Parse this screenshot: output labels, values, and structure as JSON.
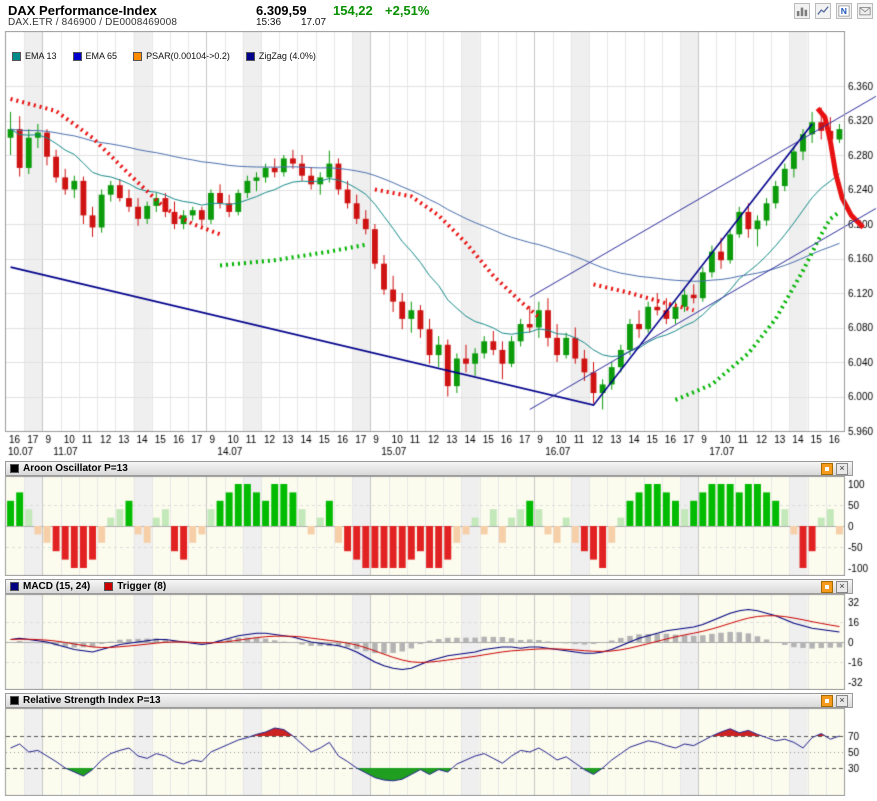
{
  "header": {
    "title": "DAX Performance-Index",
    "price": "6.309,59",
    "change": "154,22",
    "change_pct": "+2,51%",
    "time": "15:36",
    "date": "17.07",
    "identifiers": "DAX.ETR  /  846900  /  DE0008469008",
    "accent_green": "#089000"
  },
  "legend": {
    "items": [
      {
        "label": "EMA 13",
        "color": "#008b8b"
      },
      {
        "label": "EMA 65",
        "color": "#0000cd"
      },
      {
        "label": "PSAR(0.00104->0.2)",
        "color": "#ff8c00"
      },
      {
        "label": "ZigZag (4.0%)",
        "color": "#00008b"
      }
    ]
  },
  "panels": {
    "aroon": {
      "title": "Aroon Oscillator P=13",
      "swatch": "#000000",
      "axis": [
        100,
        50,
        0,
        -50,
        -100
      ]
    },
    "macd": {
      "title": "MACD (15, 24)",
      "swatch": "#000080",
      "trigger_title": "Trigger (8)",
      "trigger_swatch": "#cc0000",
      "axis": [
        32,
        16,
        0,
        -16,
        -32
      ]
    },
    "rsi": {
      "title": "Relative Strength Index P=13",
      "swatch": "#000000",
      "axis": [
        70,
        50,
        30
      ]
    }
  },
  "chart_data": {
    "type": "candlestick",
    "title": "DAX Performance-Index",
    "y_axis": {
      "min": 5960,
      "max": 6360,
      "step": 40
    },
    "bars_per_hour": 2,
    "days": [
      {
        "label": "10.07",
        "hours": [
          16,
          17
        ]
      },
      {
        "label": "11.07",
        "hours": [
          9,
          10,
          11,
          12,
          13,
          14,
          15,
          16,
          17
        ]
      },
      {
        "label": "14.07",
        "hours": [
          9,
          10,
          11,
          12,
          13,
          14,
          15,
          16,
          17
        ]
      },
      {
        "label": "15.07",
        "hours": [
          9,
          10,
          11,
          12,
          13,
          14,
          15,
          16,
          17
        ]
      },
      {
        "label": "16.07",
        "hours": [
          9,
          10,
          11,
          12,
          13,
          14,
          15,
          16,
          17
        ]
      },
      {
        "label": "17.07",
        "hours": [
          9,
          10,
          11,
          12,
          13,
          14,
          15,
          16
        ]
      }
    ],
    "candles": [
      [
        6300,
        6330,
        6280,
        6310
      ],
      [
        6310,
        6325,
        6255,
        6265
      ],
      [
        6265,
        6310,
        6258,
        6300
      ],
      [
        6300,
        6316,
        6288,
        6306
      ],
      [
        6306,
        6310,
        6268,
        6278
      ],
      [
        6278,
        6286,
        6248,
        6254
      ],
      [
        6254,
        6264,
        6234,
        6240
      ],
      [
        6240,
        6256,
        6230,
        6250
      ],
      [
        6250,
        6255,
        6200,
        6210
      ],
      [
        6210,
        6220,
        6185,
        6196
      ],
      [
        6196,
        6240,
        6190,
        6234
      ],
      [
        6234,
        6250,
        6226,
        6245
      ],
      [
        6245,
        6252,
        6226,
        6230
      ],
      [
        6230,
        6240,
        6214,
        6220
      ],
      [
        6220,
        6230,
        6198,
        6206
      ],
      [
        6206,
        6226,
        6200,
        6221
      ],
      [
        6221,
        6236,
        6214,
        6230
      ],
      [
        6230,
        6236,
        6208,
        6214
      ],
      [
        6214,
        6226,
        6194,
        6200
      ],
      [
        6200,
        6216,
        6194,
        6210
      ],
      [
        6210,
        6220,
        6204,
        6216
      ],
      [
        6216,
        6220,
        6198,
        6205
      ],
      [
        6205,
        6240,
        6200,
        6236
      ],
      [
        6236,
        6246,
        6218,
        6224
      ],
      [
        6224,
        6234,
        6208,
        6214
      ],
      [
        6214,
        6240,
        6210,
        6236
      ],
      [
        6236,
        6256,
        6230,
        6250
      ],
      [
        6250,
        6260,
        6238,
        6254
      ],
      [
        6254,
        6270,
        6248,
        6265
      ],
      [
        6265,
        6276,
        6254,
        6260
      ],
      [
        6260,
        6280,
        6255,
        6276
      ],
      [
        6276,
        6286,
        6264,
        6270
      ],
      [
        6270,
        6280,
        6250,
        6256
      ],
      [
        6256,
        6266,
        6240,
        6246
      ],
      [
        6246,
        6260,
        6234,
        6254
      ],
      [
        6254,
        6285,
        6248,
        6270
      ],
      [
        6270,
        6276,
        6234,
        6240
      ],
      [
        6240,
        6250,
        6218,
        6224
      ],
      [
        6224,
        6234,
        6200,
        6206
      ],
      [
        6206,
        6216,
        6188,
        6194
      ],
      [
        6194,
        6200,
        6148,
        6154
      ],
      [
        6154,
        6164,
        6118,
        6124
      ],
      [
        6124,
        6140,
        6098,
        6110
      ],
      [
        6110,
        6120,
        6078,
        6090
      ],
      [
        6090,
        6110,
        6074,
        6100
      ],
      [
        6100,
        6106,
        6068,
        6078
      ],
      [
        6078,
        6090,
        6038,
        6048
      ],
      [
        6048,
        6070,
        6034,
        6060
      ],
      [
        6060,
        6066,
        6000,
        6012
      ],
      [
        6012,
        6050,
        6004,
        6044
      ],
      [
        6044,
        6060,
        6028,
        6038
      ],
      [
        6038,
        6056,
        6024,
        6050
      ],
      [
        6050,
        6070,
        6044,
        6064
      ],
      [
        6064,
        6076,
        6048,
        6054
      ],
      [
        6054,
        6064,
        6020,
        6038
      ],
      [
        6038,
        6070,
        6034,
        6064
      ],
      [
        6064,
        6090,
        6058,
        6084
      ],
      [
        6084,
        6105,
        6074,
        6080
      ],
      [
        6080,
        6110,
        6068,
        6100
      ],
      [
        6100,
        6114,
        6058,
        6068
      ],
      [
        6068,
        6084,
        6040,
        6048
      ],
      [
        6048,
        6074,
        6044,
        6068
      ],
      [
        6068,
        6080,
        6038,
        6044
      ],
      [
        6044,
        6054,
        6018,
        6028
      ],
      [
        6028,
        6040,
        5992,
        6004
      ],
      [
        6004,
        6020,
        5985,
        6014
      ],
      [
        6014,
        6040,
        6008,
        6034
      ],
      [
        6034,
        6060,
        6028,
        6054
      ],
      [
        6054,
        6090,
        6048,
        6084
      ],
      [
        6084,
        6100,
        6068,
        6078
      ],
      [
        6078,
        6110,
        6074,
        6104
      ],
      [
        6104,
        6120,
        6094,
        6100
      ],
      [
        6100,
        6114,
        6084,
        6090
      ],
      [
        6090,
        6110,
        6084,
        6104
      ],
      [
        6104,
        6124,
        6098,
        6118
      ],
      [
        6118,
        6130,
        6108,
        6114
      ],
      [
        6114,
        6150,
        6110,
        6144
      ],
      [
        6144,
        6175,
        6138,
        6168
      ],
      [
        6168,
        6184,
        6148,
        6158
      ],
      [
        6158,
        6194,
        6154,
        6188
      ],
      [
        6188,
        6220,
        6184,
        6214
      ],
      [
        6214,
        6224,
        6184,
        6194
      ],
      [
        6194,
        6210,
        6174,
        6204
      ],
      [
        6204,
        6230,
        6198,
        6224
      ],
      [
        6224,
        6250,
        6218,
        6244
      ],
      [
        6244,
        6270,
        6238,
        6264
      ],
      [
        6264,
        6290,
        6254,
        6284
      ],
      [
        6284,
        6310,
        6274,
        6304
      ],
      [
        6304,
        6330,
        6294,
        6318
      ],
      [
        6318,
        6335,
        6298,
        6308
      ],
      [
        6308,
        6324,
        6288,
        6298
      ],
      [
        6298,
        6316,
        6294,
        6310
      ]
    ],
    "overlays": {
      "ema": [
        {
          "period": 13,
          "color": "#178a8a"
        },
        {
          "period": 65,
          "color": "#4a6fae"
        }
      ],
      "psar": [
        {
          "color": "#e81010",
          "width": 4,
          "dash": [
            2,
            4
          ],
          "points": [
            [
              0,
              6345
            ],
            [
              5,
              6331
            ],
            [
              9,
              6300
            ],
            [
              13,
              6258
            ],
            [
              17,
              6218
            ],
            [
              20,
              6200
            ],
            [
              23,
              6188
            ]
          ]
        },
        {
          "color": "#00b400",
          "width": 4,
          "dash": [
            2,
            4
          ],
          "points": [
            [
              23,
              6152
            ],
            [
              29,
              6158
            ],
            [
              35,
              6168
            ],
            [
              39,
              6176
            ]
          ]
        },
        {
          "color": "#e81010",
          "width": 4,
          "dash": [
            2,
            4
          ],
          "points": [
            [
              40,
              6240
            ],
            [
              44,
              6232
            ],
            [
              47,
              6210
            ],
            [
              50,
              6178
            ],
            [
              53,
              6140
            ],
            [
              56,
              6110
            ],
            [
              58,
              6092
            ]
          ]
        },
        {
          "color": "#e81010",
          "width": 4,
          "dash": [
            2,
            4
          ],
          "points": [
            [
              64,
              6130
            ],
            [
              68,
              6120
            ],
            [
              72,
              6108
            ],
            [
              75,
              6100
            ]
          ]
        },
        {
          "color": "#00b400",
          "width": 4,
          "dash": [
            2,
            4
          ],
          "points": [
            [
              73,
              5996
            ],
            [
              77,
              6014
            ],
            [
              81,
              6050
            ],
            [
              84,
              6090
            ],
            [
              87,
              6146
            ],
            [
              89,
              6188
            ],
            [
              90,
              6206
            ],
            [
              91,
              6214
            ]
          ]
        },
        {
          "color": "#e81010",
          "width": 5,
          "dash": [],
          "points": [
            [
              88.6,
              6334
            ],
            [
              89.4,
              6324
            ],
            [
              90.0,
              6296
            ],
            [
              90.6,
              6258
            ],
            [
              91.3,
              6230
            ],
            [
              92.3,
              6210
            ],
            [
              93.6,
              6196
            ]
          ]
        }
      ],
      "zigzag": {
        "color": "#00008b",
        "points": [
          [
            0,
            6150
          ],
          [
            64,
            5990
          ],
          [
            88,
            6316
          ]
        ]
      },
      "trend_lines": [
        {
          "color": "#2e2e9e",
          "points": [
            [
              57,
              6115
            ],
            [
              95,
              6348
            ]
          ]
        },
        {
          "color": "#2e2e9e",
          "points": [
            [
              57,
              5985
            ],
            [
              95,
              6218
            ]
          ]
        }
      ]
    },
    "aroon": {
      "period": 13,
      "ylim": [
        -100,
        100
      ],
      "values": [
        60,
        80,
        40,
        -20,
        -40,
        -60,
        -80,
        -100,
        -100,
        -80,
        -40,
        20,
        40,
        60,
        -20,
        -40,
        20,
        40,
        -60,
        -80,
        -40,
        -20,
        40,
        60,
        80,
        100,
        100,
        80,
        60,
        100,
        100,
        80,
        40,
        -20,
        20,
        60,
        -40,
        -60,
        -80,
        -100,
        -100,
        -100,
        -100,
        -100,
        -80,
        -60,
        -100,
        -100,
        -80,
        -40,
        -20,
        20,
        -20,
        40,
        -40,
        20,
        40,
        60,
        40,
        -20,
        -40,
        20,
        -40,
        -60,
        -80,
        -100,
        -40,
        20,
        60,
        80,
        100,
        100,
        80,
        60,
        40,
        60,
        80,
        100,
        100,
        100,
        80,
        100,
        100,
        80,
        60,
        40,
        -20,
        -100,
        -60,
        20,
        40,
        -20
      ]
    },
    "macd": {
      "fast": 15,
      "slow": 24,
      "trigger": 8,
      "ylim": [
        -32,
        32
      ],
      "values": [
        2,
        3,
        2,
        1,
        0,
        -2,
        -4,
        -6,
        -7,
        -8,
        -6,
        -4,
        -2,
        -1,
        0,
        1,
        2,
        2,
        1,
        0,
        -1,
        -2,
        -1,
        1,
        3,
        5,
        6,
        7,
        7,
        6,
        5,
        4,
        2,
        0,
        -1,
        -2,
        -3,
        -5,
        -8,
        -12,
        -16,
        -19,
        -21,
        -22,
        -21,
        -18,
        -15,
        -13,
        -11,
        -10,
        -9,
        -8,
        -6,
        -5,
        -4,
        -4,
        -5,
        -4,
        -4,
        -5,
        -6,
        -7,
        -8,
        -9,
        -9,
        -8,
        -6,
        -3,
        0,
        3,
        5,
        7,
        9,
        10,
        11,
        12,
        14,
        17,
        20,
        23,
        25,
        26,
        25,
        23,
        21,
        18,
        15,
        13,
        11,
        10,
        9,
        8
      ]
    },
    "rsi": {
      "period": 13,
      "ylim": [
        0,
        100
      ],
      "levels": [
        30,
        50,
        70
      ],
      "values": [
        55,
        60,
        50,
        52,
        45,
        38,
        30,
        25,
        20,
        28,
        40,
        48,
        52,
        55,
        45,
        42,
        48,
        45,
        38,
        35,
        40,
        38,
        50,
        55,
        60,
        65,
        68,
        72,
        75,
        80,
        78,
        70,
        60,
        50,
        55,
        62,
        45,
        38,
        30,
        24,
        18,
        15,
        14,
        16,
        22,
        28,
        22,
        28,
        25,
        35,
        40,
        45,
        48,
        42,
        36,
        45,
        52,
        50,
        55,
        48,
        40,
        44,
        36,
        28,
        22,
        30,
        40,
        48,
        56,
        60,
        64,
        62,
        58,
        55,
        60,
        58,
        64,
        70,
        75,
        79,
        74,
        77,
        72,
        68,
        64,
        66,
        62,
        55,
        68,
        73,
        66,
        70
      ]
    }
  }
}
